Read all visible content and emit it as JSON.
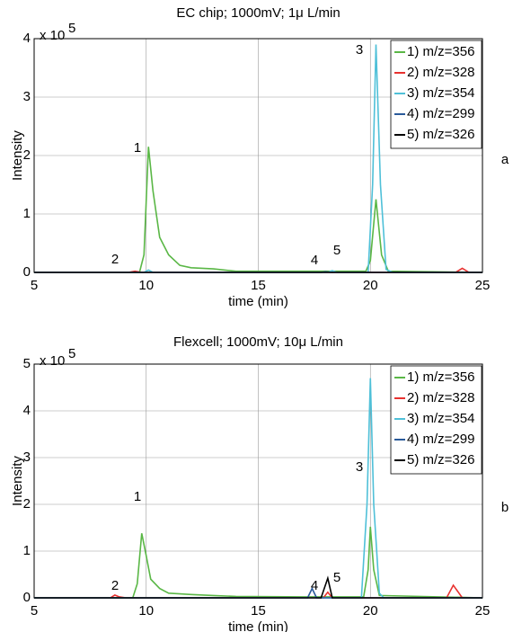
{
  "chart_data": [
    {
      "type": "line",
      "title": "EC chip; 1000mV; 1μ L/min",
      "x_label": "time (min)",
      "y_label": "Intensity",
      "y_multiplier_base": "x 10",
      "y_multiplier_exponent": "5",
      "xlim": [
        5,
        25
      ],
      "xticks": [
        5,
        10,
        15,
        20,
        25
      ],
      "ylim": [
        0,
        4
      ],
      "yticks": [
        0,
        1,
        2,
        3,
        4
      ],
      "grid": true,
      "legend": "upper right",
      "annotations": [
        "1",
        "2",
        "3",
        "4",
        "5"
      ],
      "panel_label": "a",
      "series": [
        {
          "name": "1) m/z=356",
          "color": "#5ab746",
          "x": [
            5,
            9.7,
            9.9,
            10.1,
            10.3,
            10.6,
            11,
            11.5,
            12,
            13,
            14,
            19.8,
            20,
            20.25,
            20.5,
            20.8,
            25
          ],
          "values": [
            0,
            0,
            0.3,
            2.15,
            1.4,
            0.6,
            0.3,
            0.12,
            0.08,
            0.06,
            0.02,
            0.02,
            0.2,
            1.25,
            0.3,
            0.02,
            0
          ]
        },
        {
          "name": "2) m/z=328",
          "color": "#e8312f",
          "x": [
            5,
            9.2,
            9.5,
            9.8,
            23.8,
            24.1,
            24.4,
            25
          ],
          "values": [
            0,
            0,
            0.02,
            0,
            0,
            0.07,
            0,
            0
          ]
        },
        {
          "name": "3) m/z=354",
          "color": "#4fc0d8",
          "x": [
            5,
            9.9,
            10.1,
            10.3,
            18.1,
            18.3,
            18.5,
            19.9,
            20.1,
            20.25,
            20.45,
            20.7,
            21,
            25
          ],
          "values": [
            0,
            0,
            0.04,
            0,
            0,
            0.03,
            0,
            0,
            1.5,
            3.9,
            1.5,
            0.05,
            0,
            0
          ]
        },
        {
          "name": "4) m/z=299",
          "color": "#2a5a9a",
          "x": [
            5,
            17.8,
            18,
            18.2,
            25
          ],
          "values": [
            0,
            0,
            0.01,
            0,
            0
          ]
        },
        {
          "name": "5) m/z=326",
          "color": "#000000",
          "x": [
            5,
            25
          ],
          "values": [
            0,
            0
          ]
        }
      ]
    },
    {
      "type": "line",
      "title": "Flexcell; 1000mV; 10μ L/min",
      "x_label": "time (min)",
      "y_label": "Intensity",
      "y_multiplier_base": "x 10",
      "y_multiplier_exponent": "5",
      "xlim": [
        5,
        25
      ],
      "xticks": [
        5,
        10,
        15,
        20,
        25
      ],
      "ylim": [
        0,
        5
      ],
      "yticks": [
        0,
        1,
        2,
        3,
        4,
        5
      ],
      "grid": true,
      "legend": "upper right",
      "annotations": [
        "1",
        "2",
        "3",
        "4",
        "5"
      ],
      "panel_label": "b",
      "series": [
        {
          "name": "1) m/z=356",
          "color": "#5ab746",
          "x": [
            5,
            9.4,
            9.6,
            9.8,
            10,
            10.2,
            10.6,
            11,
            12,
            13,
            14,
            17,
            19.7,
            19.9,
            20,
            20.15,
            20.4,
            25
          ],
          "values": [
            0,
            0,
            0.3,
            1.38,
            0.9,
            0.4,
            0.2,
            0.1,
            0.07,
            0.05,
            0.03,
            0.02,
            0.02,
            0.6,
            1.52,
            0.6,
            0.05,
            0
          ]
        },
        {
          "name": "2) m/z=328",
          "color": "#e8312f",
          "x": [
            5,
            8.4,
            8.6,
            8.8,
            9.1,
            17.9,
            18.1,
            18.3,
            23.4,
            23.7,
            24.1,
            25
          ],
          "values": [
            0,
            0,
            0.06,
            0.02,
            0,
            0,
            0.12,
            0,
            0,
            0.27,
            0,
            0
          ]
        },
        {
          "name": "3) m/z=354",
          "color": "#4fc0d8",
          "x": [
            5,
            19.6,
            19.85,
            20,
            20.15,
            20.4,
            20.6,
            25
          ],
          "values": [
            0,
            0,
            2,
            4.7,
            2,
            0.1,
            0,
            0
          ]
        },
        {
          "name": "4) m/z=299",
          "color": "#2a5a9a",
          "x": [
            5,
            17.2,
            17.4,
            17.6,
            25
          ],
          "values": [
            0,
            0,
            0.2,
            0,
            0
          ]
        },
        {
          "name": "5) m/z=326",
          "color": "#000000",
          "x": [
            5,
            17.8,
            18.1,
            18.3,
            25
          ],
          "values": [
            0,
            0,
            0.42,
            0,
            0
          ]
        }
      ]
    }
  ]
}
